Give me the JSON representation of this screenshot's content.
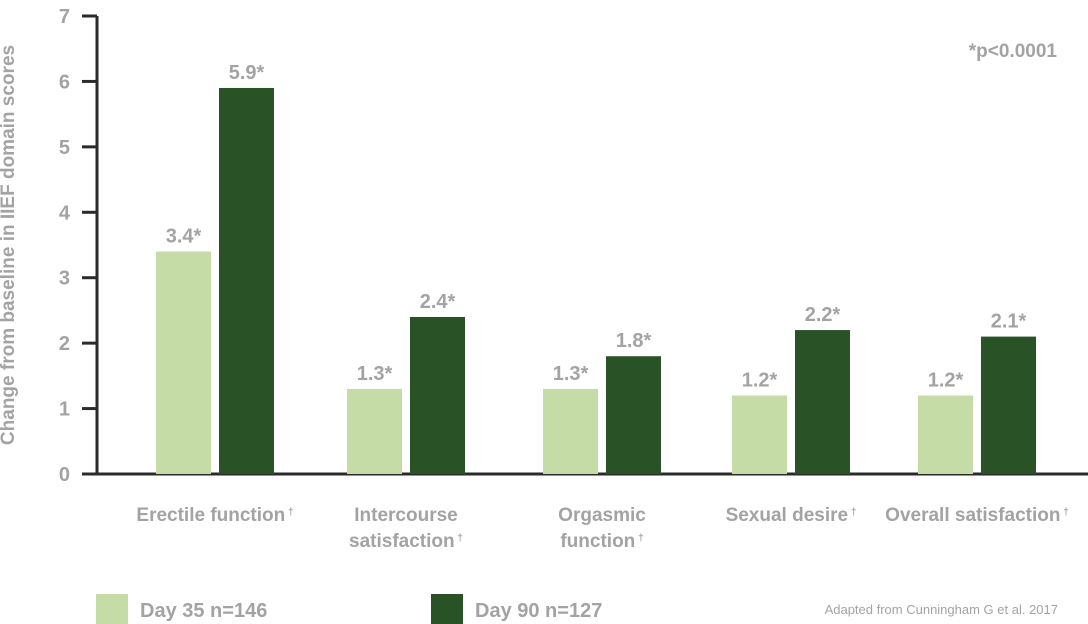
{
  "chart_data": {
    "type": "bar",
    "ylabel": "Change from baseline in IIEF domain scores",
    "ylim": [
      0,
      7
    ],
    "yticks": [
      "0",
      "1",
      "2",
      "3",
      "4",
      "5",
      "6",
      "7"
    ],
    "categories": [
      {
        "lines": [
          "Erectile function"
        ],
        "mark": "†"
      },
      {
        "lines": [
          "Intercourse",
          "satisfaction"
        ],
        "mark": "†"
      },
      {
        "lines": [
          "Orgasmic",
          "function"
        ],
        "mark": "†"
      },
      {
        "lines": [
          "Sexual desire"
        ],
        "mark": "†"
      },
      {
        "lines": [
          "Overall satisfaction"
        ],
        "mark": "†"
      }
    ],
    "series": [
      {
        "name": "Day 35 n=146",
        "color": "#c6dca6",
        "values": [
          3.4,
          1.3,
          1.3,
          1.2,
          1.2
        ],
        "labels": [
          "3.4*",
          "1.3*",
          "1.3*",
          "1.2*",
          "1.2*"
        ]
      },
      {
        "name": "Day 90 n=127",
        "color": "#2a5227",
        "values": [
          5.9,
          2.4,
          1.8,
          2.2,
          2.1
        ],
        "labels": [
          "5.9*",
          "2.4*",
          "1.8*",
          "2.2*",
          "2.1*"
        ]
      }
    ],
    "annotation": "*p<0.0001",
    "source": "Adapted from Cunningham G et al. 2017",
    "grid": false,
    "legend": "bottom"
  }
}
